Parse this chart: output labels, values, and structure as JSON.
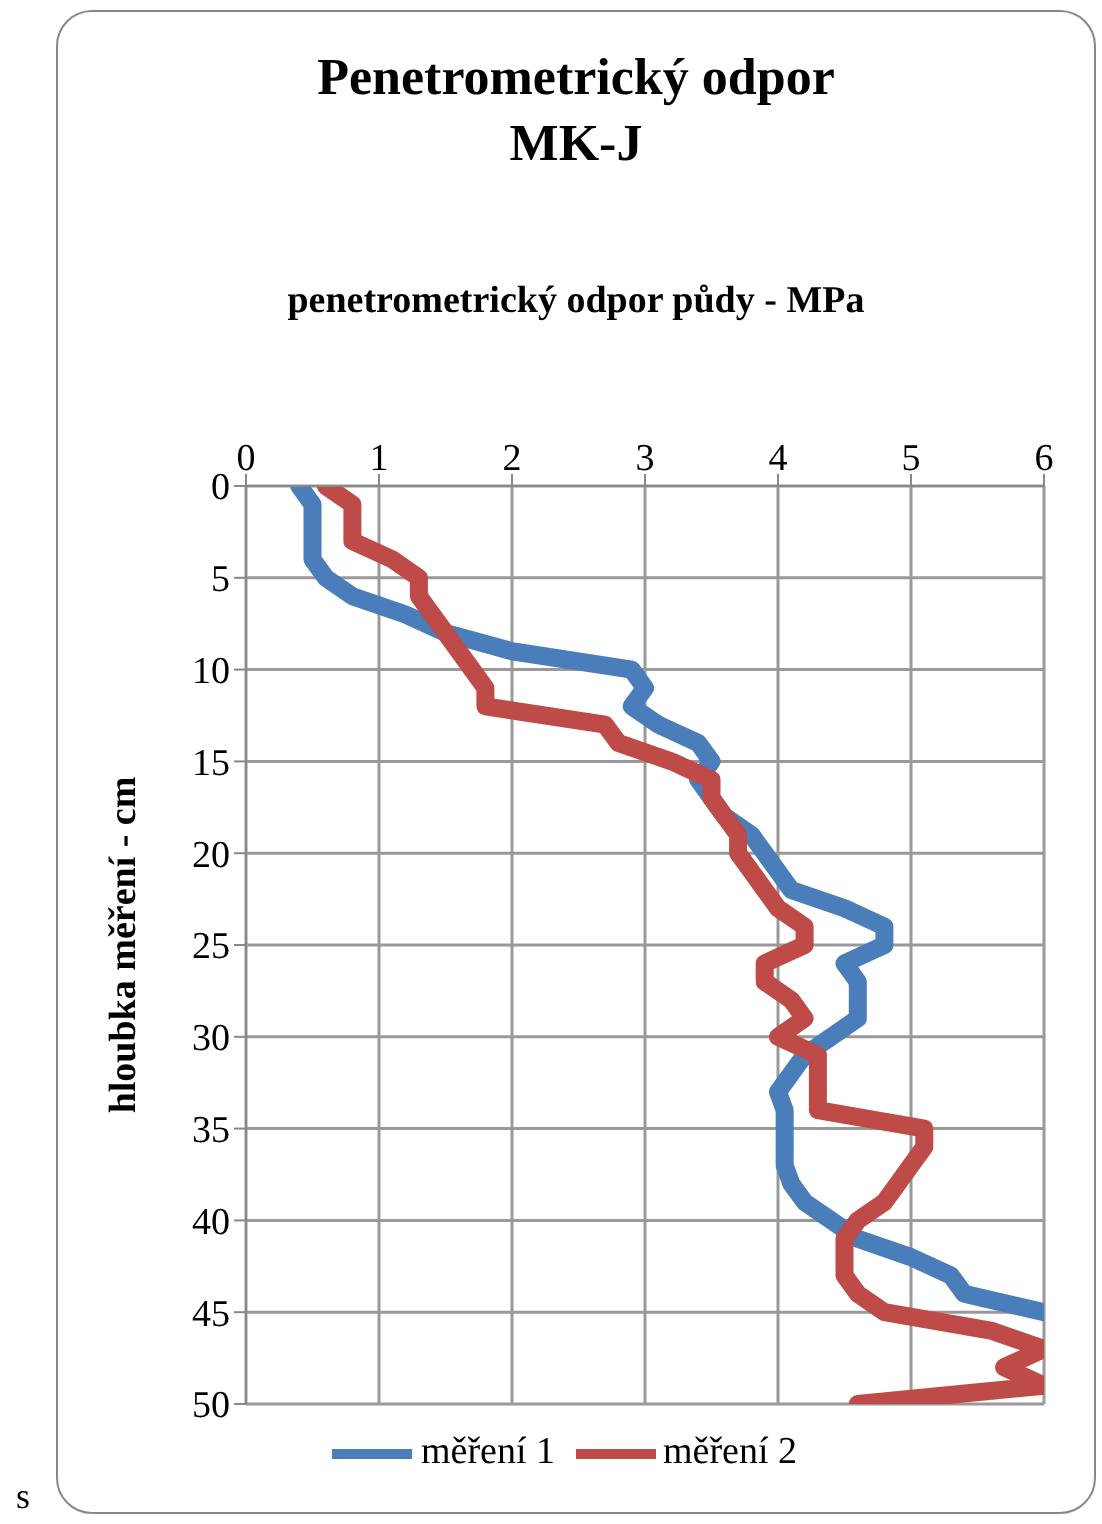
{
  "chart_data": {
    "type": "line",
    "title": "Penetrometrický odpor\nMK-J",
    "xlabel": "penetrometrický odpor půdy - MPa",
    "ylabel": "hloubka měření - cm",
    "xlim": [
      0,
      6
    ],
    "xticks": [
      0,
      1,
      2,
      3,
      4,
      5,
      6
    ],
    "ylim": [
      50,
      0
    ],
    "yticks": [
      0,
      5,
      10,
      15,
      20,
      25,
      30,
      35,
      40,
      45,
      50
    ],
    "grid": true,
    "legend": "bottom",
    "marker": "none",
    "line_style": "solid",
    "annotations": [
      "s"
    ],
    "series": [
      {
        "name": "měření 1",
        "color": "#4a7ebb",
        "x": [
          0.4,
          0.5,
          0.5,
          0.5,
          0.5,
          0.6,
          0.8,
          1.2,
          1.5,
          2.0,
          2.9,
          3.0,
          2.9,
          3.1,
          3.4,
          3.5,
          3.4,
          3.5,
          3.6,
          3.8,
          3.9,
          4.0,
          4.1,
          4.5,
          4.8,
          4.8,
          4.5,
          4.6,
          4.6,
          4.6,
          4.4,
          4.2,
          4.1,
          4.0,
          4.05,
          4.05,
          4.05,
          4.05,
          4.1,
          4.2,
          4.4,
          4.6,
          5.0,
          5.3,
          5.4,
          6.0
        ],
        "values": [
          0,
          1,
          2,
          3,
          4,
          5,
          6,
          7,
          8,
          9,
          10,
          11,
          12,
          13,
          14,
          15,
          16,
          17,
          18,
          19,
          20,
          21,
          22,
          23,
          24,
          25,
          26,
          27,
          28,
          29,
          30,
          31,
          32,
          33,
          34,
          35,
          36,
          37,
          38,
          39,
          40,
          41,
          42,
          43,
          44,
          45
        ]
      },
      {
        "name": "měření 2",
        "color": "#be4b48",
        "x": [
          0.6,
          0.8,
          0.8,
          0.8,
          1.1,
          1.3,
          1.3,
          1.4,
          1.5,
          1.6,
          1.7,
          1.8,
          1.8,
          2.7,
          2.8,
          3.2,
          3.5,
          3.5,
          3.6,
          3.7,
          3.7,
          3.8,
          3.9,
          4.0,
          4.2,
          4.2,
          3.9,
          3.9,
          4.1,
          4.2,
          4.0,
          4.3,
          4.3,
          4.3,
          4.3,
          5.1,
          5.1,
          5.0,
          4.9,
          4.8,
          4.6,
          4.5,
          4.5,
          4.5,
          4.6,
          4.8,
          5.6,
          6.0,
          5.7,
          6.0,
          4.6
        ],
        "values": [
          0,
          1,
          2,
          3,
          4,
          5,
          6,
          7,
          8,
          9,
          10,
          11,
          12,
          13,
          14,
          15,
          16,
          17,
          18,
          19,
          20,
          21,
          22,
          23,
          24,
          25,
          26,
          27,
          28,
          29,
          30,
          31,
          32,
          33,
          34,
          35,
          36,
          37,
          38,
          39,
          40,
          41,
          42,
          43,
          44,
          45,
          46,
          47,
          48,
          49,
          50
        ]
      }
    ]
  }
}
